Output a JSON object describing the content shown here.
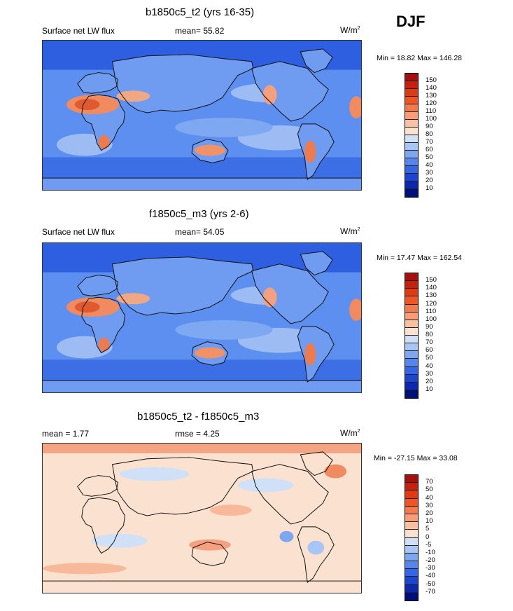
{
  "season": "DJF",
  "panels": [
    {
      "title": "b1850c5_t2 (yrs 16-35)",
      "left_label": "Surface net LW flux",
      "center_label": "mean=  55.82",
      "units_base": "W/m",
      "units_exp": "2",
      "minmax": "Min =  18.82 Max = 146.28",
      "field_type": "absolute",
      "colorbar": {
        "labels": [
          "150",
          "140",
          "130",
          "120",
          "110",
          "100",
          "90",
          "80",
          "70",
          "60",
          "50",
          "40",
          "30",
          "20",
          "10"
        ],
        "colors": [
          "#a50f0f",
          "#c8200e",
          "#e03a12",
          "#ee5522",
          "#f47a4c",
          "#f79e78",
          "#f9c0a2",
          "#fbe2d0",
          "#cfe0f7",
          "#a8c5f4",
          "#7da8f0",
          "#5686ec",
          "#3465e5",
          "#1c45d2",
          "#0c28b0",
          "#001078"
        ]
      }
    },
    {
      "title": "f1850c5_m3 (yrs 2-6)",
      "left_label": "Surface net LW flux",
      "center_label": "mean=  54.05",
      "units_base": "W/m",
      "units_exp": "2",
      "minmax": "Min =  17.47 Max = 162.54",
      "field_type": "absolute",
      "colorbar": {
        "labels": [
          "150",
          "140",
          "130",
          "120",
          "110",
          "100",
          "90",
          "80",
          "70",
          "60",
          "50",
          "40",
          "30",
          "20",
          "10"
        ],
        "colors": [
          "#a50f0f",
          "#c8200e",
          "#e03a12",
          "#ee5522",
          "#f47a4c",
          "#f79e78",
          "#f9c0a2",
          "#fbe2d0",
          "#cfe0f7",
          "#a8c5f4",
          "#7da8f0",
          "#5686ec",
          "#3465e5",
          "#1c45d2",
          "#0c28b0",
          "#001078"
        ]
      }
    },
    {
      "title": "b1850c5_t2 - f1850c5_m3",
      "left_label": "mean =   1.77",
      "center_label": "rmse =   4.25",
      "units_base": "W/m",
      "units_exp": "2",
      "minmax": "Min = -27.15 Max =  33.08",
      "field_type": "difference",
      "colorbar": {
        "labels": [
          "70",
          "50",
          "40",
          "30",
          "20",
          "10",
          "5",
          "0",
          "-5",
          "-10",
          "-20",
          "-30",
          "-40",
          "-50",
          "-70"
        ],
        "colors": [
          "#a50f0f",
          "#c8200e",
          "#e03a12",
          "#ee5522",
          "#f47a4c",
          "#f79e78",
          "#f9c0a2",
          "#fbe2d0",
          "#cfe0f7",
          "#a8c5f4",
          "#7da8f0",
          "#5686ec",
          "#3465e5",
          "#1c45d2",
          "#0c28b0",
          "#001078"
        ]
      }
    }
  ]
}
